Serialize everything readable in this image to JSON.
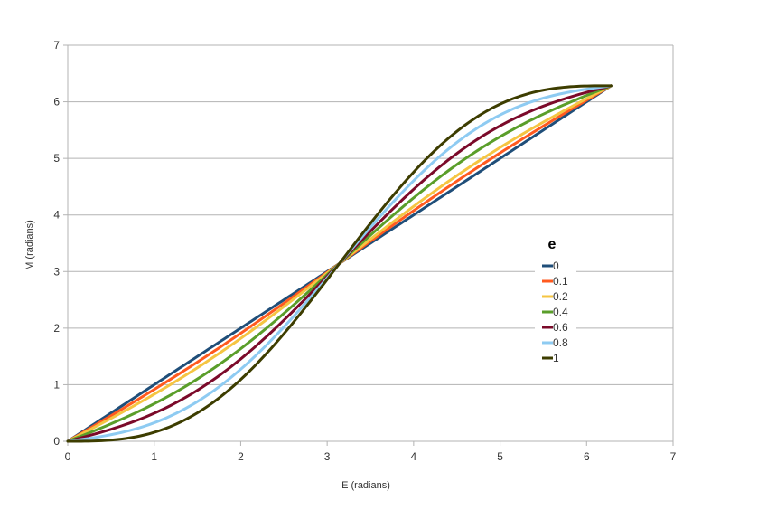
{
  "chart_data": {
    "type": "line",
    "title": "",
    "xlabel": "E (radians)",
    "ylabel": "M (radians)",
    "xlim": [
      0,
      7
    ],
    "ylim": [
      0,
      7
    ],
    "x_ticks": [
      "0",
      "1",
      "2",
      "3",
      "4",
      "5",
      "6",
      "7"
    ],
    "y_ticks": [
      "0",
      "1",
      "2",
      "3",
      "4",
      "5",
      "6",
      "7"
    ],
    "grid": "horizontal",
    "legend_title": "e",
    "legend_position": "right",
    "function": "M = E - e*sin(E)",
    "x_range": [
      0,
      6.283
    ],
    "series": [
      {
        "name": "0",
        "e": 0,
        "color": "#1f4e79"
      },
      {
        "name": "0.1",
        "e": 0.1,
        "color": "#ff5a1f"
      },
      {
        "name": "0.2",
        "e": 0.2,
        "color": "#f5c542"
      },
      {
        "name": "0.4",
        "e": 0.4,
        "color": "#5a9e2a"
      },
      {
        "name": "0.6",
        "e": 0.6,
        "color": "#7b0a2a"
      },
      {
        "name": "0.8",
        "e": 0.8,
        "color": "#8ecbf2"
      },
      {
        "name": "1",
        "e": 1,
        "color": "#3d3d00"
      }
    ]
  }
}
